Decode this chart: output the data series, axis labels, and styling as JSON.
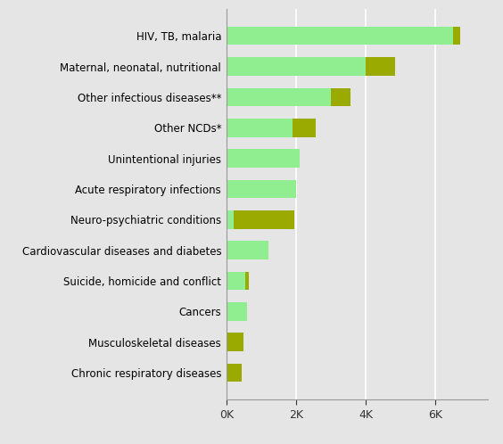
{
  "categories": [
    "HIV, TB, malaria",
    "Maternal, neonatal, nutritional",
    "Other infectious diseases**",
    "Other NCDs*",
    "Unintentional injuries",
    "Acute respiratory infections",
    "Neuro-psychiatric conditions",
    "Cardiovascular diseases and diabetes",
    "Suicide, homicide and conflict",
    "Cancers",
    "Musculoskeletal diseases",
    "Chronic respiratory diseases"
  ],
  "green_values": [
    6500,
    4000,
    3000,
    1900,
    2100,
    2000,
    200,
    1200,
    550,
    600,
    0,
    0
  ],
  "olive_values": [
    200,
    850,
    550,
    650,
    0,
    0,
    1750,
    0,
    100,
    0,
    480,
    430
  ],
  "green_color": "#90EE90",
  "olive_color": "#9aaa00",
  "bg_color": "#e5e5e5",
  "bar_height": 0.6,
  "xlim": [
    0,
    7500
  ],
  "xticks": [
    0,
    2000,
    4000,
    6000
  ],
  "xticklabels": [
    "0K",
    "2K",
    "4K",
    "6K"
  ],
  "label_fontsize": 8.5,
  "tick_fontsize": 9.0,
  "figsize": [
    5.64,
    4.98
  ],
  "dpi": 100
}
